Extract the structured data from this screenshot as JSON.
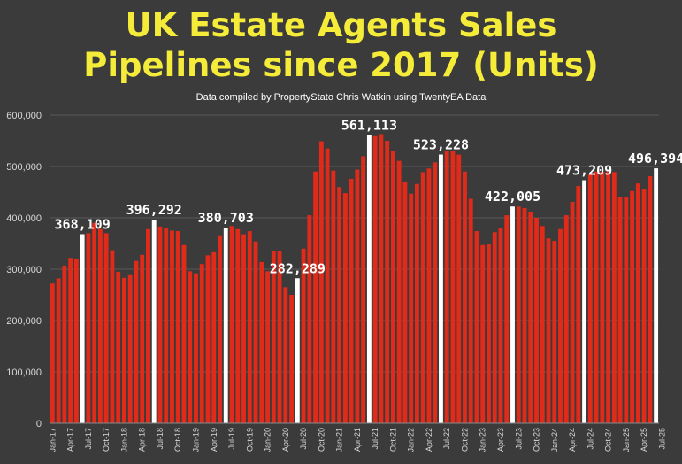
{
  "colors": {
    "background": "#3b3b3b",
    "title": "#f5ec3a",
    "bar": "#e02a1a",
    "highlight": "#ffffff",
    "grid": "#5a5a5a",
    "axis_text": "#d8d8d8"
  },
  "chart_data": {
    "type": "bar",
    "title_line1": "UK Estate Agents Sales",
    "title_line2": "Pipelines since 2017 (Units)",
    "subtitle": "Data compiled by PropertyStato Chris Watkin using TwentyEA Data",
    "ylim": [
      0,
      600000
    ],
    "yticks": [
      0,
      100000,
      200000,
      300000,
      400000,
      500000,
      600000
    ],
    "ytick_labels": [
      "0",
      "100,000",
      "200,000",
      "300,000",
      "400,000",
      "500,000",
      "600,000"
    ],
    "grid": true,
    "x_tick_labels": [
      {
        "index": 0,
        "label": "Jan-17"
      },
      {
        "index": 3,
        "label": "Apr-17"
      },
      {
        "index": 6,
        "label": "Jul-17"
      },
      {
        "index": 9,
        "label": "Oct-17"
      },
      {
        "index": 12,
        "label": "Jan-18"
      },
      {
        "index": 15,
        "label": "Apr-18"
      },
      {
        "index": 18,
        "label": "Jul-18"
      },
      {
        "index": 21,
        "label": "Oct-18"
      },
      {
        "index": 24,
        "label": "Jan-19"
      },
      {
        "index": 27,
        "label": "Apr-19"
      },
      {
        "index": 30,
        "label": "Jul-19"
      },
      {
        "index": 33,
        "label": "Oct-19"
      },
      {
        "index": 36,
        "label": "Jan-20"
      },
      {
        "index": 39,
        "label": "Apr-20"
      },
      {
        "index": 42,
        "label": "Jul-20"
      },
      {
        "index": 45,
        "label": "Oct-20"
      },
      {
        "index": 48,
        "label": "Jan-21"
      },
      {
        "index": 51,
        "label": "Apr-21"
      },
      {
        "index": 54,
        "label": "Jul-21"
      },
      {
        "index": 57,
        "label": "Oct-21"
      },
      {
        "index": 60,
        "label": "Jan-22"
      },
      {
        "index": 63,
        "label": "Apr-22"
      },
      {
        "index": 66,
        "label": "Jul-22"
      },
      {
        "index": 69,
        "label": "Oct-22"
      },
      {
        "index": 72,
        "label": "Jan-23"
      },
      {
        "index": 75,
        "label": "Apr-23"
      },
      {
        "index": 78,
        "label": "Jul-23"
      },
      {
        "index": 81,
        "label": "Oct-23"
      },
      {
        "index": 84,
        "label": "Jan-24"
      },
      {
        "index": 87,
        "label": "Apr-24"
      },
      {
        "index": 90,
        "label": "Jul-24"
      },
      {
        "index": 93,
        "label": "Oct-24"
      },
      {
        "index": 96,
        "label": "Jan-25"
      },
      {
        "index": 99,
        "label": "Apr-25"
      },
      {
        "index": 102,
        "label": "Jul-25"
      }
    ],
    "values": [
      272000,
      282000,
      307000,
      322000,
      320000,
      368109,
      370000,
      390000,
      378000,
      370000,
      337000,
      295000,
      283000,
      290000,
      316000,
      328000,
      378000,
      396292,
      383000,
      380000,
      375000,
      374000,
      347000,
      296000,
      292000,
      310000,
      327000,
      333000,
      366000,
      380703,
      384000,
      378000,
      368000,
      374000,
      354000,
      314000,
      296000,
      335000,
      335000,
      265000,
      250000,
      282289,
      340000,
      405000,
      490000,
      549000,
      535000,
      492000,
      460000,
      448000,
      476000,
      494000,
      520000,
      561113,
      559000,
      563000,
      550000,
      530000,
      511000,
      470000,
      447000,
      466000,
      489000,
      496000,
      508000,
      523228,
      531000,
      530000,
      523000,
      490000,
      437000,
      374000,
      347000,
      350000,
      372000,
      380000,
      405000,
      422005,
      422000,
      419000,
      412000,
      400000,
      384000,
      360000,
      355000,
      378000,
      405000,
      431000,
      462000,
      473209,
      484000,
      490000,
      490000,
      490000,
      489000,
      440000,
      440000,
      452000,
      467000,
      455000,
      481000,
      496394
    ],
    "highlights": [
      {
        "index": 5,
        "label": "368,109"
      },
      {
        "index": 17,
        "label": "396,292"
      },
      {
        "index": 29,
        "label": "380,703"
      },
      {
        "index": 41,
        "label": "282,289"
      },
      {
        "index": 53,
        "label": "561,113"
      },
      {
        "index": 65,
        "label": "523,228"
      },
      {
        "index": 77,
        "label": "422,005"
      },
      {
        "index": 89,
        "label": "473,209"
      },
      {
        "index": 101,
        "label": "496,394"
      }
    ]
  }
}
